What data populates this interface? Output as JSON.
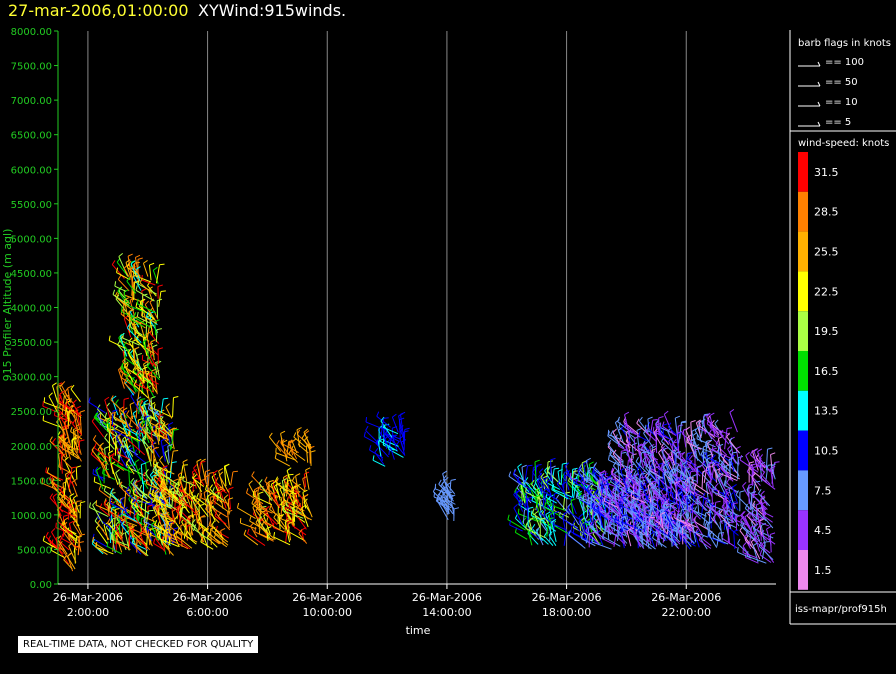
{
  "title": {
    "date": "27-mar-2006,01:00:00",
    "name": "XYWind:915winds."
  },
  "chart_data": {
    "type": "scatter",
    "title": "XYWind:915winds.",
    "xlabel": "time",
    "ylabel": "915 Profiler Altitude (m agl)",
    "x_ticks": [
      {
        "date": "26-Mar-2006",
        "time": "2:00:00"
      },
      {
        "date": "26-Mar-2006",
        "time": "6:00:00"
      },
      {
        "date": "26-Mar-2006",
        "time": "10:00:00"
      },
      {
        "date": "26-Mar-2006",
        "time": "14:00:00"
      },
      {
        "date": "26-Mar-2006",
        "time": "18:00:00"
      },
      {
        "date": "26-Mar-2006",
        "time": "22:00:00"
      }
    ],
    "x_tick_hours": [
      2,
      6,
      10,
      14,
      18,
      22
    ],
    "xlim_hours": [
      1.0,
      25.0
    ],
    "y_ticks": [
      "0.00",
      "500.00",
      "1000.00",
      "1500.00",
      "2000.00",
      "2500.00",
      "3000.00",
      "3500.00",
      "4000.00",
      "4500.00",
      "5000.00",
      "5500.00",
      "6000.00",
      "6500.00",
      "7000.00",
      "7500.00",
      "8000.00"
    ],
    "ylim": [
      0,
      8000
    ],
    "grid": "vertical lines at x ticks",
    "series_clusters": [
      {
        "hours": [
          1.0,
          1.8
        ],
        "alt": [
          150,
          2700
        ],
        "speed": [
          22,
          33
        ]
      },
      {
        "hours": [
          2.5,
          4.9
        ],
        "alt": [
          400,
          2500
        ],
        "speed": [
          8,
          32
        ]
      },
      {
        "hours": [
          3.2,
          4.4
        ],
        "alt": [
          2600,
          4500
        ],
        "speed": [
          14,
          32
        ]
      },
      {
        "hours": [
          4.5,
          6.8
        ],
        "alt": [
          500,
          1500
        ],
        "speed": [
          20,
          32
        ]
      },
      {
        "hours": [
          7.6,
          9.5
        ],
        "alt": [
          550,
          1400
        ],
        "speed": [
          20,
          32
        ]
      },
      {
        "hours": [
          8.4,
          9.5
        ],
        "alt": [
          1700,
          2000
        ],
        "speed": [
          25,
          28
        ]
      },
      {
        "hours": [
          11.7,
          12.6
        ],
        "alt": [
          1700,
          2300
        ],
        "speed": [
          9,
          13
        ]
      },
      {
        "hours": [
          14.0,
          14.3
        ],
        "alt": [
          900,
          1350
        ],
        "speed": [
          7,
          9
        ]
      },
      {
        "hours": [
          16.5,
          19.4
        ],
        "alt": [
          550,
          1500
        ],
        "speed": [
          8,
          20
        ]
      },
      {
        "hours": [
          18.6,
          22.4
        ],
        "alt": [
          500,
          1500
        ],
        "speed": [
          3,
          12
        ]
      },
      {
        "hours": [
          19.7,
          23.8
        ],
        "alt": [
          500,
          2200
        ],
        "speed": [
          2,
          10
        ]
      },
      {
        "hours": [
          24.1,
          25.0
        ],
        "alt": [
          300,
          1700
        ],
        "speed": [
          2,
          8
        ]
      }
    ]
  },
  "barb_legend": {
    "title": "barb flags in knots",
    "items": [
      "== 100",
      "== 50",
      "== 10",
      "== 5"
    ]
  },
  "speed_legend": {
    "title": "wind-speed: knots",
    "bins": [
      {
        "label": "31.5",
        "color": "#ff0000"
      },
      {
        "label": "28.5",
        "color": "#ff8000"
      },
      {
        "label": "25.5",
        "color": "#ffb000"
      },
      {
        "label": "22.5",
        "color": "#ffff00"
      },
      {
        "label": "19.5",
        "color": "#aaff44"
      },
      {
        "label": "16.5",
        "color": "#00e000"
      },
      {
        "label": "13.5",
        "color": "#00ffff"
      },
      {
        "label": "10.5",
        "color": "#0000ff"
      },
      {
        "label": "7.5",
        "color": "#6699ff"
      },
      {
        "label": "4.5",
        "color": "#9933ff"
      },
      {
        "label": "1.5",
        "color": "#ee88ee"
      }
    ]
  },
  "source": "iss-mapr/prof915h",
  "disclaimer": "REAL-TIME DATA, NOT CHECKED FOR QUALITY"
}
